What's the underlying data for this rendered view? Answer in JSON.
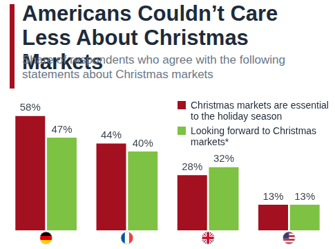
{
  "chart_data": {
    "type": "bar",
    "title": "Americans Couldn’t Care Less About Christmas Markets",
    "subtitle": "Share of respondents who agree with the following statements about Christmas markets",
    "categories": [
      null,
      null,
      null,
      null
    ],
    "series": [
      {
        "name": "Christmas markets are essential to the holiday season",
        "color": "#a3101f",
        "values": [
          58,
          44,
          28,
          13
        ],
        "value_labels": [
          "58%",
          "44%",
          "28%",
          "13%"
        ]
      },
      {
        "name": "Looking forward to Christmas markets*",
        "color": "#7dc242",
        "values": [
          47,
          40,
          32,
          13
        ],
        "value_labels": [
          "47%",
          "40%",
          "32%",
          "13%"
        ]
      }
    ],
    "ylim": [
      0,
      60
    ],
    "grid": false,
    "legend": "top-right",
    "data_labels": true,
    "tick_labels": false
  }
}
